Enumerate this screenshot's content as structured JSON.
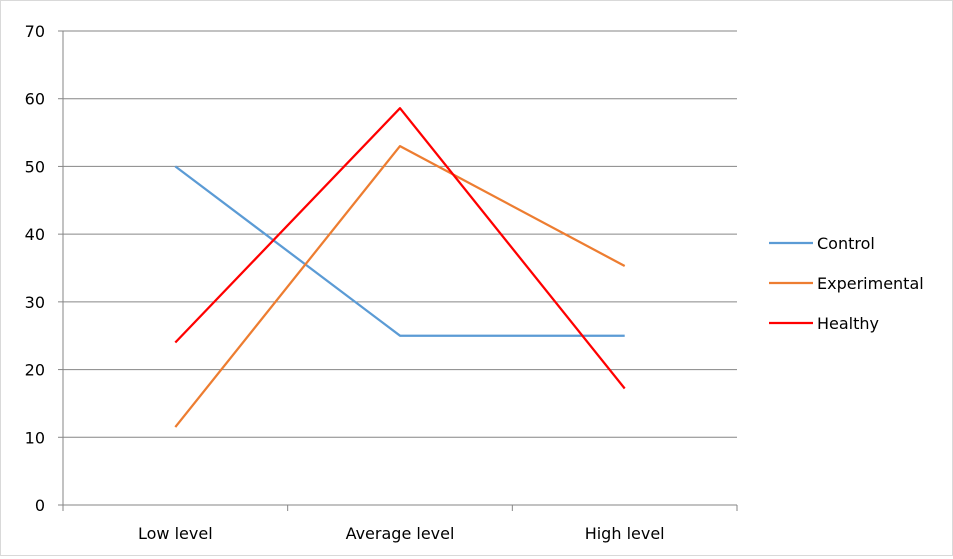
{
  "chart_data": {
    "type": "line",
    "title": "",
    "xlabel": "",
    "ylabel": "",
    "categories": [
      "Low level",
      "Average level",
      "High level"
    ],
    "ylim": [
      0,
      70
    ],
    "yticks": [
      0,
      10,
      20,
      30,
      40,
      50,
      60,
      70
    ],
    "grid": true,
    "legend_position": "right",
    "series": [
      {
        "name": "Control",
        "color": "#5b9bd5",
        "values": [
          50,
          25,
          25
        ]
      },
      {
        "name": "Experimental",
        "color": "#ed7d31",
        "values": [
          11.5,
          53,
          35.3
        ]
      },
      {
        "name": "Healthy",
        "color": "#ff0000",
        "values": [
          24,
          58.6,
          17.2
        ]
      }
    ]
  }
}
